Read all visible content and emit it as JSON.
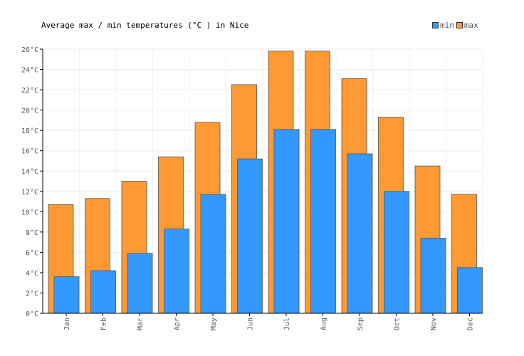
{
  "chart_data": {
    "type": "bar",
    "title": "Average max / min temperatures (°C ) in Nice",
    "categories": [
      "Jan",
      "Feb",
      "Mar",
      "Apr",
      "May",
      "Jun",
      "Jul",
      "Aug",
      "Sep",
      "Oct",
      "Nov",
      "Dec"
    ],
    "series": [
      {
        "name": "max",
        "color": "#ff9933",
        "values": [
          10.7,
          11.3,
          13.0,
          15.4,
          18.8,
          22.5,
          25.8,
          25.8,
          23.1,
          19.3,
          14.5,
          11.7
        ]
      },
      {
        "name": "min",
        "color": "#3399ff",
        "values": [
          3.6,
          4.2,
          5.9,
          8.3,
          11.7,
          15.2,
          18.1,
          18.1,
          15.7,
          12.0,
          7.4,
          4.5
        ]
      }
    ],
    "y_ticks": [
      "0°C",
      "2°C",
      "4°C",
      "6°C",
      "8°C",
      "10°C",
      "12°C",
      "14°C",
      "16°C",
      "18°C",
      "20°C",
      "22°C",
      "24°C",
      "26°C"
    ],
    "ylim": [
      0,
      26
    ],
    "grid": true,
    "legend_position": "top-right"
  }
}
